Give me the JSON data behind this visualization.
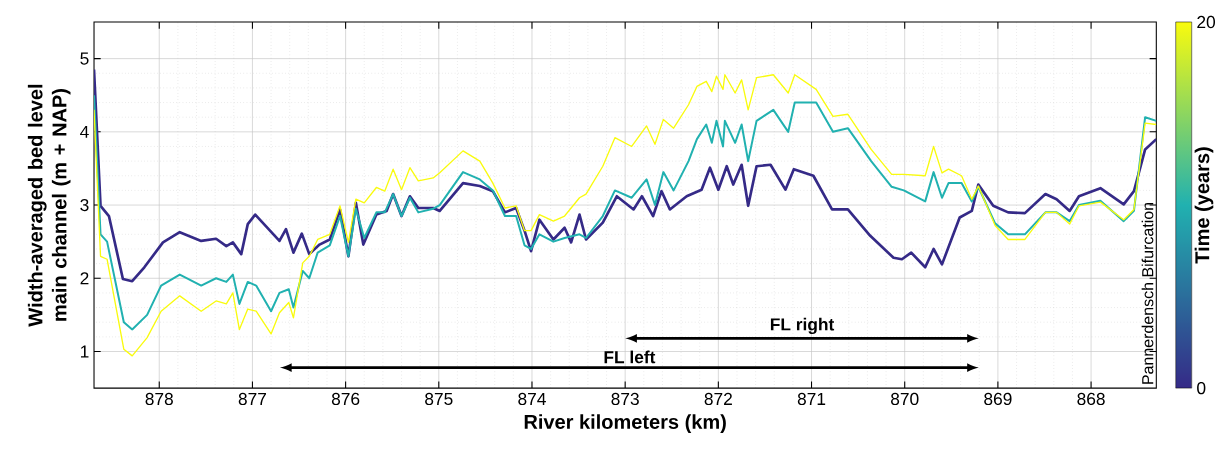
{
  "chart_data": {
    "type": "line",
    "xlabel": "River kilometers (km)",
    "ylabel": "Width-averaged bed level main channel (m + NAP)",
    "clabel": "Time (years)",
    "clim": [
      0,
      20
    ],
    "cticks": [
      0,
      20
    ],
    "xlim": [
      878.7,
      867.3
    ],
    "ylim": [
      0.5,
      5.5
    ],
    "xticks": [
      878,
      877,
      876,
      875,
      874,
      873,
      872,
      871,
      870,
      869,
      868
    ],
    "yticks": [
      1,
      2,
      3,
      4,
      5
    ],
    "grid": true,
    "series": [
      {
        "color": "#352a87",
        "x": [
          878.7,
          878.63,
          878.54,
          878.39,
          878.29,
          878.16,
          877.96,
          877.78,
          877.55,
          877.39,
          877.28,
          877.21,
          877.12,
          877.05,
          876.97,
          876.71,
          876.64,
          876.56,
          876.47,
          876.39,
          876.28,
          876.17,
          876.06,
          875.97,
          875.89,
          875.81,
          875.67,
          875.56,
          875.49,
          875.4,
          875.31,
          875.22,
          875.06,
          874.99,
          874.74,
          874.56,
          874.42,
          874.29,
          874.17,
          874.08,
          874.01,
          873.92,
          873.77,
          873.65,
          873.58,
          873.49,
          873.42,
          873.24,
          873.09,
          872.91,
          872.82,
          872.7,
          872.61,
          872.52,
          872.34,
          872.18,
          872.09,
          872.0,
          871.91,
          871.84,
          871.75,
          871.68,
          871.59,
          871.44,
          871.28,
          871.19,
          870.98,
          870.78,
          870.61,
          870.37,
          870.12,
          870.03,
          869.93,
          869.78,
          869.69,
          869.6,
          869.41,
          869.28,
          869.21,
          869.05,
          868.89,
          868.71,
          868.49,
          868.37,
          868.23,
          868.13,
          867.9,
          867.65,
          867.54,
          867.42,
          867.3
        ],
        "values": [
          4.85,
          2.99,
          2.85,
          1.99,
          1.96,
          2.15,
          2.49,
          2.63,
          2.51,
          2.54,
          2.44,
          2.49,
          2.33,
          2.74,
          2.87,
          2.51,
          2.67,
          2.35,
          2.61,
          2.33,
          2.46,
          2.53,
          2.94,
          2.3,
          3.03,
          2.46,
          2.87,
          2.92,
          3.15,
          2.85,
          3.12,
          2.96,
          2.96,
          2.92,
          3.3,
          3.26,
          3.19,
          2.9,
          2.96,
          2.65,
          2.37,
          2.8,
          2.53,
          2.69,
          2.49,
          2.87,
          2.53,
          2.76,
          3.12,
          2.94,
          3.12,
          2.85,
          3.19,
          2.94,
          3.12,
          3.21,
          3.51,
          3.21,
          3.53,
          3.28,
          3.55,
          2.99,
          3.53,
          3.55,
          3.21,
          3.49,
          3.4,
          2.94,
          2.94,
          2.58,
          2.28,
          2.26,
          2.35,
          2.15,
          2.4,
          2.19,
          2.83,
          2.92,
          3.28,
          2.99,
          2.9,
          2.89,
          3.15,
          3.08,
          2.92,
          3.12,
          3.23,
          3.01,
          3.19,
          3.76,
          3.9
        ]
      },
      {
        "color": "#21b1b0",
        "x": [
          878.7,
          878.63,
          878.56,
          878.38,
          878.29,
          878.13,
          877.98,
          877.78,
          877.55,
          877.39,
          877.28,
          877.21,
          877.14,
          877.05,
          876.96,
          876.8,
          876.71,
          876.61,
          876.56,
          876.46,
          876.39,
          876.3,
          876.17,
          876.06,
          875.97,
          875.89,
          875.8,
          875.67,
          875.58,
          875.49,
          875.4,
          875.31,
          875.22,
          875.06,
          874.99,
          874.74,
          874.56,
          874.42,
          874.29,
          874.17,
          874.08,
          874.01,
          873.92,
          873.77,
          873.65,
          873.49,
          873.42,
          873.24,
          873.11,
          872.93,
          872.77,
          872.68,
          872.59,
          872.48,
          872.32,
          872.23,
          872.13,
          872.07,
          872.02,
          871.95,
          871.93,
          871.82,
          871.75,
          871.68,
          871.59,
          871.41,
          871.25,
          871.18,
          870.95,
          870.77,
          870.61,
          870.36,
          870.14,
          870.01,
          869.78,
          869.69,
          869.6,
          869.53,
          869.39,
          869.28,
          869.21,
          869.03,
          868.89,
          868.71,
          868.49,
          868.37,
          868.23,
          868.13,
          867.9,
          867.65,
          867.54,
          867.42,
          867.3
        ],
        "values": [
          4.5,
          2.6,
          2.5,
          1.4,
          1.3,
          1.5,
          1.9,
          2.05,
          1.9,
          2.0,
          1.95,
          2.05,
          1.65,
          1.95,
          1.9,
          1.55,
          1.8,
          1.85,
          1.6,
          2.1,
          2.0,
          2.35,
          2.45,
          2.85,
          2.3,
          2.95,
          2.55,
          2.9,
          2.9,
          3.15,
          2.85,
          3.1,
          2.9,
          2.95,
          3.0,
          3.45,
          3.35,
          3.2,
          2.85,
          2.85,
          2.45,
          2.4,
          2.6,
          2.5,
          2.55,
          2.6,
          2.55,
          2.85,
          3.2,
          3.1,
          3.35,
          3.0,
          3.45,
          3.2,
          3.6,
          3.9,
          4.1,
          3.85,
          4.15,
          3.8,
          4.15,
          3.85,
          4.1,
          3.6,
          4.15,
          4.3,
          4.0,
          4.4,
          4.4,
          4.0,
          4.05,
          3.6,
          3.25,
          3.2,
          3.05,
          3.45,
          3.1,
          3.3,
          3.3,
          3.05,
          3.25,
          2.75,
          2.6,
          2.6,
          2.9,
          2.9,
          2.78,
          3.0,
          3.06,
          2.78,
          2.92,
          4.2,
          4.15
        ]
      },
      {
        "color": "#f9fb0e",
        "x": [
          878.7,
          878.63,
          878.56,
          878.38,
          878.29,
          878.13,
          877.98,
          877.78,
          877.55,
          877.39,
          877.28,
          877.21,
          877.14,
          877.05,
          876.96,
          876.8,
          876.71,
          876.61,
          876.56,
          876.46,
          876.39,
          876.3,
          876.17,
          876.06,
          875.97,
          875.89,
          875.8,
          875.67,
          875.58,
          875.49,
          875.4,
          875.31,
          875.22,
          875.06,
          874.99,
          874.74,
          874.56,
          874.42,
          874.29,
          874.17,
          874.08,
          874.01,
          873.92,
          873.77,
          873.65,
          873.49,
          873.42,
          873.24,
          873.11,
          872.93,
          872.77,
          872.68,
          872.59,
          872.48,
          872.32,
          872.23,
          872.13,
          872.07,
          872.02,
          871.95,
          871.93,
          871.82,
          871.75,
          871.68,
          871.59,
          871.41,
          871.25,
          871.18,
          870.95,
          870.77,
          870.61,
          870.36,
          870.14,
          870.01,
          869.78,
          869.69,
          869.6,
          869.53,
          869.39,
          869.28,
          869.21,
          869.03,
          868.89,
          868.71,
          868.49,
          868.37,
          868.23,
          868.13,
          867.9,
          867.65,
          867.54,
          867.42,
          867.3
        ],
        "values": [
          4.3,
          2.3,
          2.26,
          1.03,
          0.94,
          1.19,
          1.55,
          1.76,
          1.55,
          1.69,
          1.65,
          1.8,
          1.3,
          1.58,
          1.55,
          1.24,
          1.53,
          1.67,
          1.46,
          2.21,
          2.3,
          2.53,
          2.6,
          2.99,
          2.49,
          3.08,
          3.03,
          3.24,
          3.19,
          3.49,
          3.21,
          3.51,
          3.33,
          3.37,
          3.44,
          3.74,
          3.6,
          3.3,
          2.96,
          2.99,
          2.65,
          2.65,
          2.87,
          2.78,
          2.85,
          3.1,
          3.15,
          3.53,
          3.92,
          3.8,
          4.08,
          3.83,
          4.17,
          4.05,
          4.37,
          4.62,
          4.69,
          4.55,
          4.76,
          4.58,
          4.78,
          4.53,
          4.71,
          4.3,
          4.74,
          4.78,
          4.53,
          4.78,
          4.58,
          4.21,
          4.24,
          3.76,
          3.42,
          3.42,
          3.4,
          3.8,
          3.44,
          3.49,
          3.4,
          3.08,
          3.26,
          2.72,
          2.53,
          2.53,
          2.9,
          2.9,
          2.74,
          2.99,
          3.04,
          2.8,
          2.94,
          4.12,
          4.1
        ]
      }
    ],
    "annotations": [
      "FL left",
      "FL right",
      "Pannerdensch Bifurcation"
    ]
  }
}
